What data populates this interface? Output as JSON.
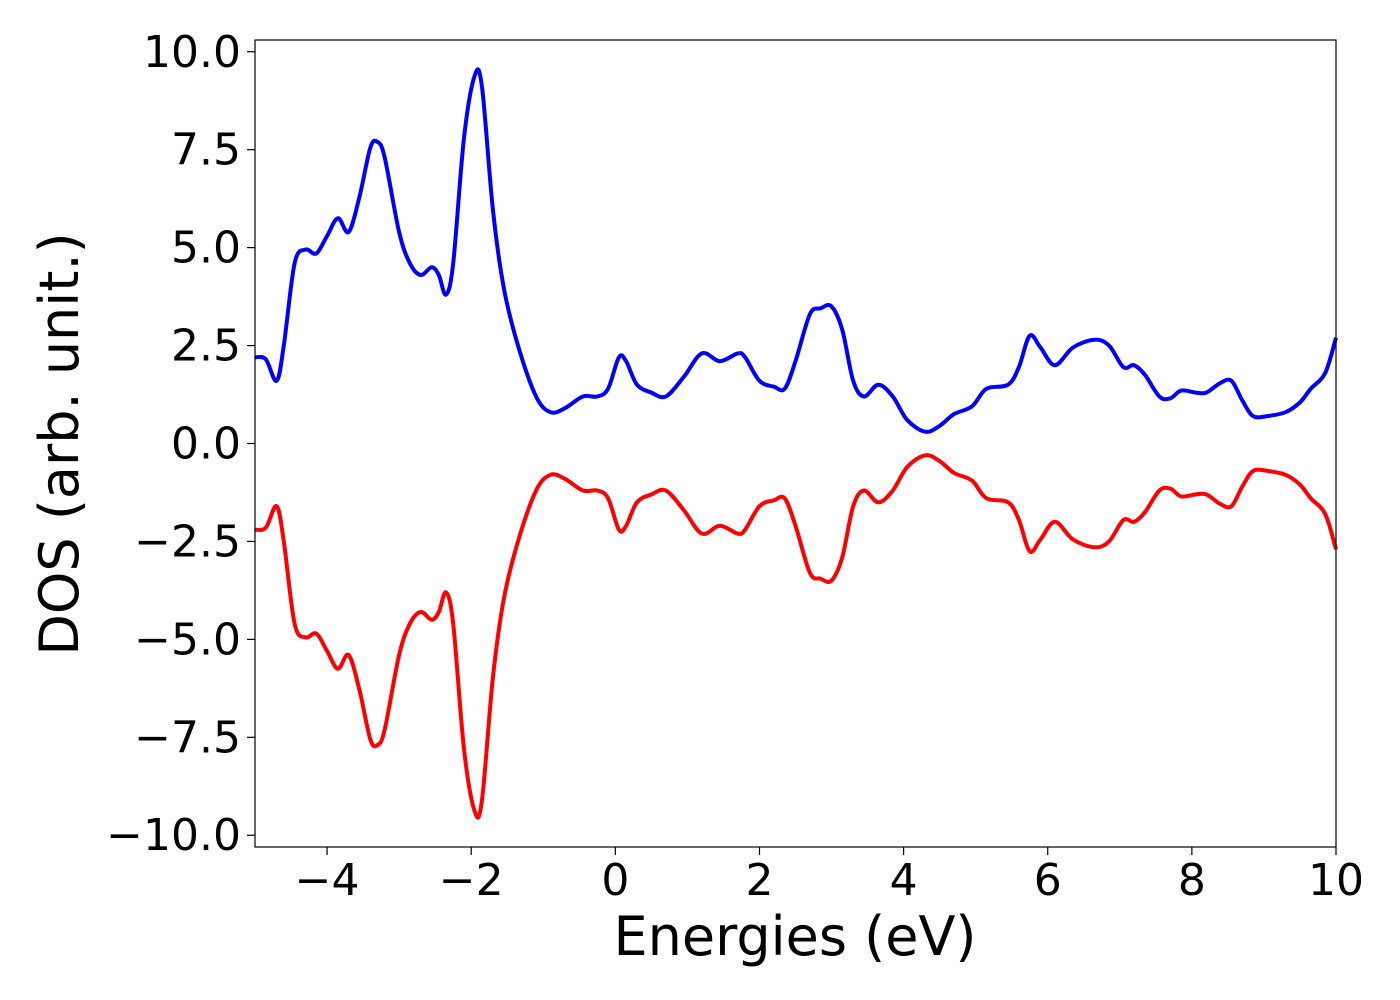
{
  "chart_data": {
    "type": "line",
    "xlabel": "Energies (eV)",
    "ylabel": "DOS (arb. unit.)",
    "xlim": [
      -5,
      10
    ],
    "ylim": [
      -10.3,
      10.3
    ],
    "x_ticks": [
      -4,
      -2,
      0,
      2,
      4,
      6,
      8,
      10
    ],
    "x_tick_labels": [
      "−4",
      "−2",
      "0",
      "2",
      "4",
      "6",
      "8",
      "10"
    ],
    "y_ticks": [
      10.0,
      7.5,
      5.0,
      2.5,
      0.0,
      -2.5,
      -5.0,
      -7.5,
      -10.0
    ],
    "y_tick_labels": [
      "10.0",
      "7.5",
      "5.0",
      "2.5",
      "0.0",
      "−2.5",
      "−5.0",
      "−7.5",
      "−10.0"
    ],
    "grid": false,
    "legend": "none",
    "series": [
      {
        "color": "#0000ff",
        "points": [
          [
            -5.0,
            2.2
          ],
          [
            -4.85,
            2.15
          ],
          [
            -4.7,
            1.6
          ],
          [
            -4.6,
            2.5
          ],
          [
            -4.45,
            4.6
          ],
          [
            -4.3,
            4.95
          ],
          [
            -4.15,
            4.85
          ],
          [
            -4.0,
            5.3
          ],
          [
            -3.85,
            5.75
          ],
          [
            -3.7,
            5.4
          ],
          [
            -3.55,
            6.3
          ],
          [
            -3.4,
            7.55
          ],
          [
            -3.3,
            7.7
          ],
          [
            -3.2,
            7.3
          ],
          [
            -3.0,
            5.4
          ],
          [
            -2.85,
            4.6
          ],
          [
            -2.7,
            4.3
          ],
          [
            -2.55,
            4.5
          ],
          [
            -2.45,
            4.3
          ],
          [
            -2.35,
            3.8
          ],
          [
            -2.25,
            4.6
          ],
          [
            -2.1,
            7.8
          ],
          [
            -1.95,
            9.4
          ],
          [
            -1.85,
            9.1
          ],
          [
            -1.7,
            6.0
          ],
          [
            -1.55,
            4.0
          ],
          [
            -1.35,
            2.5
          ],
          [
            -1.1,
            1.2
          ],
          [
            -0.9,
            0.8
          ],
          [
            -0.7,
            0.9
          ],
          [
            -0.45,
            1.2
          ],
          [
            -0.25,
            1.2
          ],
          [
            -0.1,
            1.4
          ],
          [
            0.05,
            2.2
          ],
          [
            0.15,
            2.1
          ],
          [
            0.3,
            1.5
          ],
          [
            0.5,
            1.3
          ],
          [
            0.7,
            1.2
          ],
          [
            0.95,
            1.7
          ],
          [
            1.2,
            2.3
          ],
          [
            1.45,
            2.1
          ],
          [
            1.7,
            2.3
          ],
          [
            1.8,
            2.2
          ],
          [
            2.0,
            1.6
          ],
          [
            2.2,
            1.45
          ],
          [
            2.35,
            1.4
          ],
          [
            2.5,
            2.1
          ],
          [
            2.7,
            3.3
          ],
          [
            2.85,
            3.45
          ],
          [
            3.0,
            3.5
          ],
          [
            3.15,
            2.9
          ],
          [
            3.3,
            1.6
          ],
          [
            3.45,
            1.2
          ],
          [
            3.65,
            1.5
          ],
          [
            3.85,
            1.2
          ],
          [
            4.05,
            0.6
          ],
          [
            4.3,
            0.3
          ],
          [
            4.5,
            0.45
          ],
          [
            4.7,
            0.75
          ],
          [
            4.95,
            0.95
          ],
          [
            5.15,
            1.4
          ],
          [
            5.45,
            1.5
          ],
          [
            5.6,
            1.95
          ],
          [
            5.75,
            2.75
          ],
          [
            5.9,
            2.45
          ],
          [
            6.1,
            2.0
          ],
          [
            6.35,
            2.45
          ],
          [
            6.65,
            2.65
          ],
          [
            6.85,
            2.5
          ],
          [
            7.05,
            1.95
          ],
          [
            7.2,
            2.0
          ],
          [
            7.35,
            1.75
          ],
          [
            7.55,
            1.2
          ],
          [
            7.7,
            1.15
          ],
          [
            7.85,
            1.35
          ],
          [
            8.05,
            1.3
          ],
          [
            8.2,
            1.3
          ],
          [
            8.4,
            1.55
          ],
          [
            8.55,
            1.6
          ],
          [
            8.7,
            1.1
          ],
          [
            8.85,
            0.7
          ],
          [
            9.05,
            0.7
          ],
          [
            9.3,
            0.8
          ],
          [
            9.5,
            1.05
          ],
          [
            9.65,
            1.4
          ],
          [
            9.85,
            1.8
          ],
          [
            10.0,
            2.7
          ]
        ]
      },
      {
        "color": "#ff0000",
        "points": [
          [
            -5.0,
            -2.2
          ],
          [
            -4.85,
            -2.15
          ],
          [
            -4.7,
            -1.6
          ],
          [
            -4.6,
            -2.5
          ],
          [
            -4.45,
            -4.6
          ],
          [
            -4.3,
            -4.95
          ],
          [
            -4.15,
            -4.85
          ],
          [
            -4.0,
            -5.3
          ],
          [
            -3.85,
            -5.75
          ],
          [
            -3.7,
            -5.4
          ],
          [
            -3.55,
            -6.3
          ],
          [
            -3.4,
            -7.55
          ],
          [
            -3.3,
            -7.7
          ],
          [
            -3.2,
            -7.3
          ],
          [
            -3.0,
            -5.4
          ],
          [
            -2.85,
            -4.6
          ],
          [
            -2.7,
            -4.3
          ],
          [
            -2.55,
            -4.5
          ],
          [
            -2.45,
            -4.3
          ],
          [
            -2.35,
            -3.8
          ],
          [
            -2.25,
            -4.6
          ],
          [
            -2.1,
            -7.8
          ],
          [
            -1.95,
            -9.4
          ],
          [
            -1.85,
            -9.1
          ],
          [
            -1.7,
            -6.0
          ],
          [
            -1.55,
            -4.0
          ],
          [
            -1.35,
            -2.5
          ],
          [
            -1.1,
            -1.2
          ],
          [
            -0.9,
            -0.8
          ],
          [
            -0.7,
            -0.9
          ],
          [
            -0.45,
            -1.2
          ],
          [
            -0.25,
            -1.2
          ],
          [
            -0.1,
            -1.4
          ],
          [
            0.05,
            -2.2
          ],
          [
            0.15,
            -2.1
          ],
          [
            0.3,
            -1.5
          ],
          [
            0.5,
            -1.3
          ],
          [
            0.7,
            -1.2
          ],
          [
            0.95,
            -1.7
          ],
          [
            1.2,
            -2.3
          ],
          [
            1.45,
            -2.1
          ],
          [
            1.7,
            -2.3
          ],
          [
            1.8,
            -2.2
          ],
          [
            2.0,
            -1.6
          ],
          [
            2.2,
            -1.45
          ],
          [
            2.35,
            -1.4
          ],
          [
            2.5,
            -2.1
          ],
          [
            2.7,
            -3.3
          ],
          [
            2.85,
            -3.45
          ],
          [
            3.0,
            -3.5
          ],
          [
            3.15,
            -2.9
          ],
          [
            3.3,
            -1.6
          ],
          [
            3.45,
            -1.2
          ],
          [
            3.65,
            -1.5
          ],
          [
            3.85,
            -1.2
          ],
          [
            4.05,
            -0.6
          ],
          [
            4.3,
            -0.3
          ],
          [
            4.5,
            -0.45
          ],
          [
            4.7,
            -0.75
          ],
          [
            4.95,
            -0.95
          ],
          [
            5.15,
            -1.4
          ],
          [
            5.45,
            -1.5
          ],
          [
            5.6,
            -1.95
          ],
          [
            5.75,
            -2.75
          ],
          [
            5.9,
            -2.45
          ],
          [
            6.1,
            -2.0
          ],
          [
            6.35,
            -2.45
          ],
          [
            6.65,
            -2.65
          ],
          [
            6.85,
            -2.5
          ],
          [
            7.05,
            -1.95
          ],
          [
            7.2,
            -2.0
          ],
          [
            7.35,
            -1.75
          ],
          [
            7.55,
            -1.2
          ],
          [
            7.7,
            -1.15
          ],
          [
            7.85,
            -1.35
          ],
          [
            8.05,
            -1.3
          ],
          [
            8.2,
            -1.3
          ],
          [
            8.4,
            -1.55
          ],
          [
            8.55,
            -1.6
          ],
          [
            8.7,
            -1.1
          ],
          [
            8.85,
            -0.7
          ],
          [
            9.05,
            -0.7
          ],
          [
            9.3,
            -0.8
          ],
          [
            9.5,
            -1.05
          ],
          [
            9.65,
            -1.4
          ],
          [
            9.85,
            -1.8
          ],
          [
            10.0,
            -2.7
          ]
        ]
      }
    ]
  }
}
